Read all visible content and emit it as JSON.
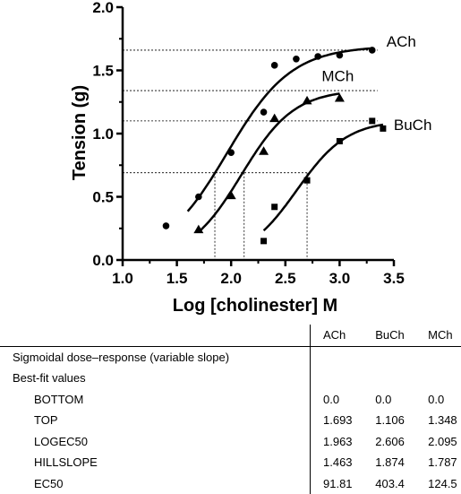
{
  "chart_data": {
    "type": "scatter",
    "xlabel": "Log [cholinester] M",
    "ylabel": "Tension (g)",
    "xlim": [
      1.0,
      3.5
    ],
    "ylim": [
      0.0,
      2.0
    ],
    "xticks": [
      "1.0",
      "1.5",
      "2.0",
      "2.5",
      "3.0",
      "3.5"
    ],
    "yticks": [
      "0.0",
      "0.5",
      "1.0",
      "1.5",
      "2.0"
    ],
    "grid": false,
    "series": [
      {
        "name": "ACh",
        "marker": "circle",
        "x": [
          1.4,
          1.7,
          2.0,
          2.3,
          2.4,
          2.6,
          2.8,
          3.0,
          3.3
        ],
        "y": [
          0.27,
          0.5,
          0.85,
          1.17,
          1.54,
          1.59,
          1.61,
          1.62,
          1.66
        ],
        "fit": {
          "bottom": 0.0,
          "top": 1.693,
          "logec50": 1.963,
          "hillslope": 1.463,
          "x_range": [
            1.6,
            3.3
          ]
        }
      },
      {
        "name": "MCh",
        "marker": "triangle",
        "x": [
          1.7,
          2.0,
          2.3,
          2.4,
          2.7,
          3.0
        ],
        "y": [
          0.24,
          0.51,
          0.86,
          1.12,
          1.26,
          1.28
        ],
        "fit": {
          "bottom": 0.0,
          "top": 1.348,
          "logec50": 2.095,
          "hillslope": 1.787,
          "x_range": [
            1.7,
            3.0
          ]
        }
      },
      {
        "name": "BuCh",
        "marker": "square",
        "x": [
          2.3,
          2.4,
          2.7,
          3.0,
          3.3,
          3.4
        ],
        "y": [
          0.15,
          0.42,
          0.63,
          0.94,
          1.1,
          1.04
        ],
        "fit": {
          "bottom": 0.0,
          "top": 1.106,
          "logec50": 2.606,
          "hillslope": 1.874,
          "x_range": [
            2.3,
            3.4
          ]
        }
      }
    ],
    "reference_lines": [
      {
        "series": "ACh",
        "y_top": 1.66,
        "y_half": 0.69,
        "x_half": 1.85
      },
      {
        "series": "MCh",
        "y_top": 1.34,
        "y_half": 0.69,
        "x_half": 2.12
      },
      {
        "series": "BuCh",
        "y_top": 1.1,
        "y_half": 0.69,
        "x_half": 2.7
      }
    ]
  },
  "table": {
    "columns": [
      "ACh",
      "BuCh",
      "MCh"
    ],
    "title": "Sigmoidal dose–response (variable slope)",
    "section": "Best-fit values",
    "rows": [
      {
        "label": "BOTTOM",
        "values": [
          "0.0",
          "0.0",
          "0.0"
        ]
      },
      {
        "label": "TOP",
        "values": [
          "1.693",
          "1.106",
          "1.348"
        ]
      },
      {
        "label": "LOGEC50",
        "values": [
          "1.963",
          "2.606",
          "2.095"
        ]
      },
      {
        "label": "HILLSLOPE",
        "values": [
          "1.463",
          "1.874",
          "1.787"
        ]
      },
      {
        "label": "EC50",
        "values": [
          "91.81",
          "403.4",
          "124.5"
        ]
      }
    ]
  }
}
